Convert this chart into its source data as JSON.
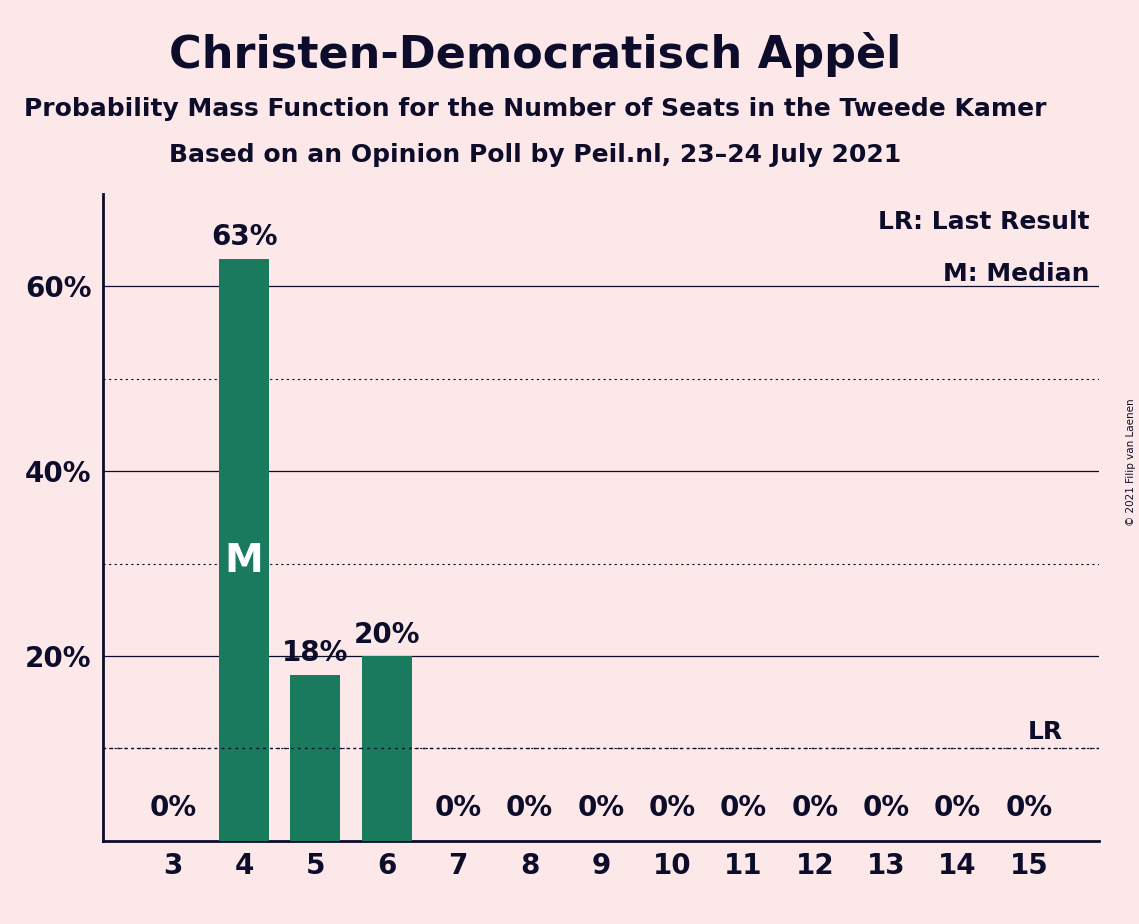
{
  "title": "Christen-Democratisch Appèl",
  "subtitle1": "Probability Mass Function for the Number of Seats in the Tweede Kamer",
  "subtitle2": "Based on an Opinion Poll by Peil.nl, 23–24 July 2021",
  "copyright": "© 2021 Filip van Laenen",
  "categories": [
    3,
    4,
    5,
    6,
    7,
    8,
    9,
    10,
    11,
    12,
    13,
    14,
    15
  ],
  "values": [
    0,
    63,
    18,
    20,
    0,
    0,
    0,
    0,
    0,
    0,
    0,
    0,
    0
  ],
  "bar_color": "#1a7a5e",
  "median_seat": 4,
  "lr_value": 10,
  "lr_label": "LR",
  "median_label": "M",
  "legend_lr": "LR: Last Result",
  "legend_m": "M: Median",
  "background_color": "#fce8e8",
  "text_color": "#0d0d2b",
  "yticks": [
    20,
    40,
    60
  ],
  "ylim": [
    0,
    70
  ],
  "grid_solid_values": [
    20,
    40,
    60
  ],
  "grid_dotted_values": [
    10,
    30,
    50
  ],
  "title_fontsize": 32,
  "subtitle_fontsize": 18,
  "tick_fontsize": 20,
  "label_fontsize": 18,
  "bar_label_fontsize": 20
}
